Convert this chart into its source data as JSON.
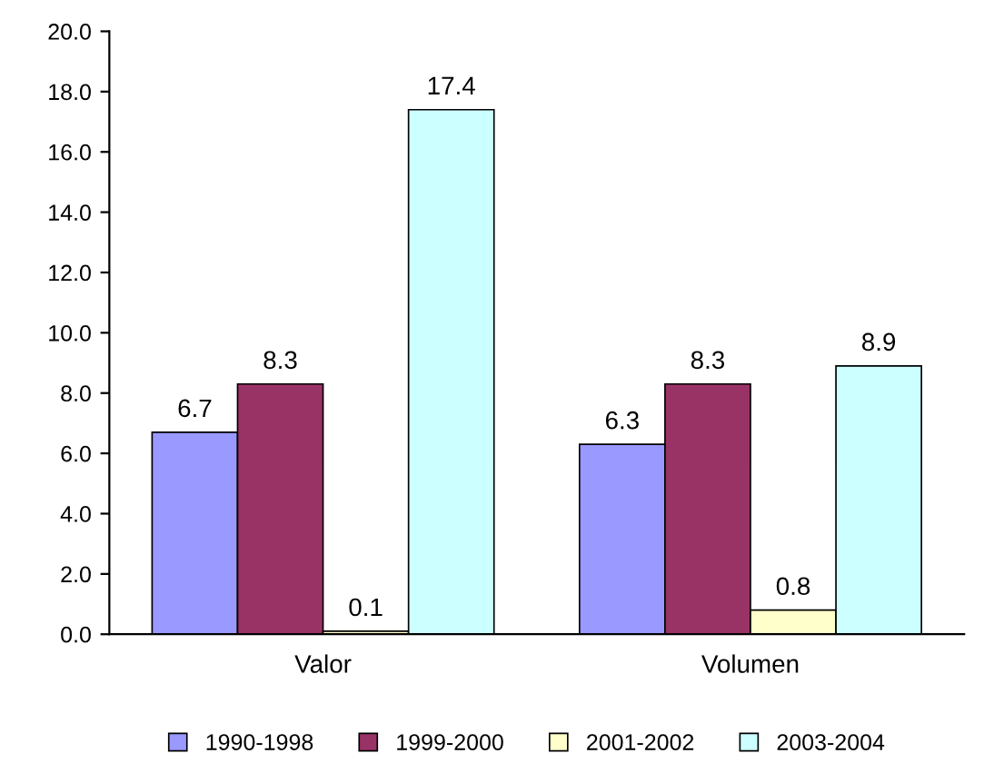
{
  "chart_data": {
    "type": "bar",
    "categories": [
      "Valor",
      "Volumen"
    ],
    "series": [
      {
        "name": "1990-1998",
        "color": "#9999ff",
        "values": [
          6.7,
          6.3
        ]
      },
      {
        "name": "1999-2000",
        "color": "#993366",
        "values": [
          8.3,
          8.3
        ]
      },
      {
        "name": "2001-2002",
        "color": "#ffffcc",
        "values": [
          0.1,
          0.8
        ]
      },
      {
        "name": "2003-2004",
        "color": "#ccffff",
        "values": [
          17.4,
          8.9
        ]
      }
    ],
    "ylim": [
      0,
      20
    ],
    "yticks": [
      {
        "value": 0,
        "label": "0.0"
      },
      {
        "value": 2,
        "label": "2.0"
      },
      {
        "value": 4,
        "label": "4.0"
      },
      {
        "value": 6,
        "label": "6.0"
      },
      {
        "value": 8,
        "label": "8.0"
      },
      {
        "value": 10,
        "label": "10.0"
      },
      {
        "value": 12,
        "label": "12.0"
      },
      {
        "value": 14,
        "label": "14.0"
      },
      {
        "value": 16,
        "label": "16.0"
      },
      {
        "value": 18,
        "label": "18.0"
      },
      {
        "value": 20,
        "label": "20.0"
      }
    ],
    "data_labels": true,
    "grid": false,
    "legend": "bottom"
  }
}
